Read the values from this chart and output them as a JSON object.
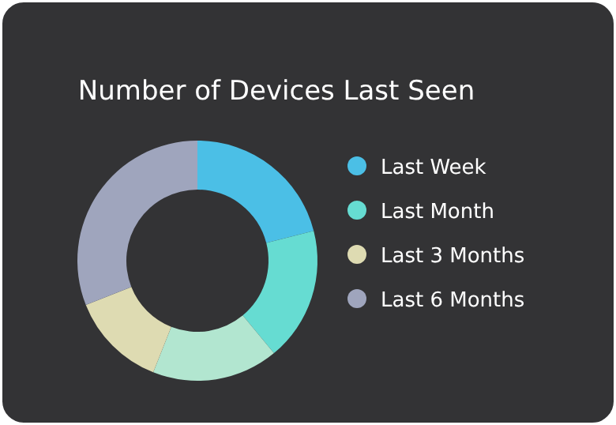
{
  "chart_data": {
    "type": "donut",
    "title": "Number of Devices Last Seen",
    "categories": [
      "Last Week",
      "Last Month",
      null,
      "Last 3 Months",
      "Last 6 Months"
    ],
    "values": [
      21,
      18,
      17,
      13,
      31
    ],
    "colors": [
      "#4bbfe6",
      "#66dcd2",
      "#b2e6d0",
      "#dedbb2",
      "#9fa5bd"
    ],
    "legend": "right"
  }
}
